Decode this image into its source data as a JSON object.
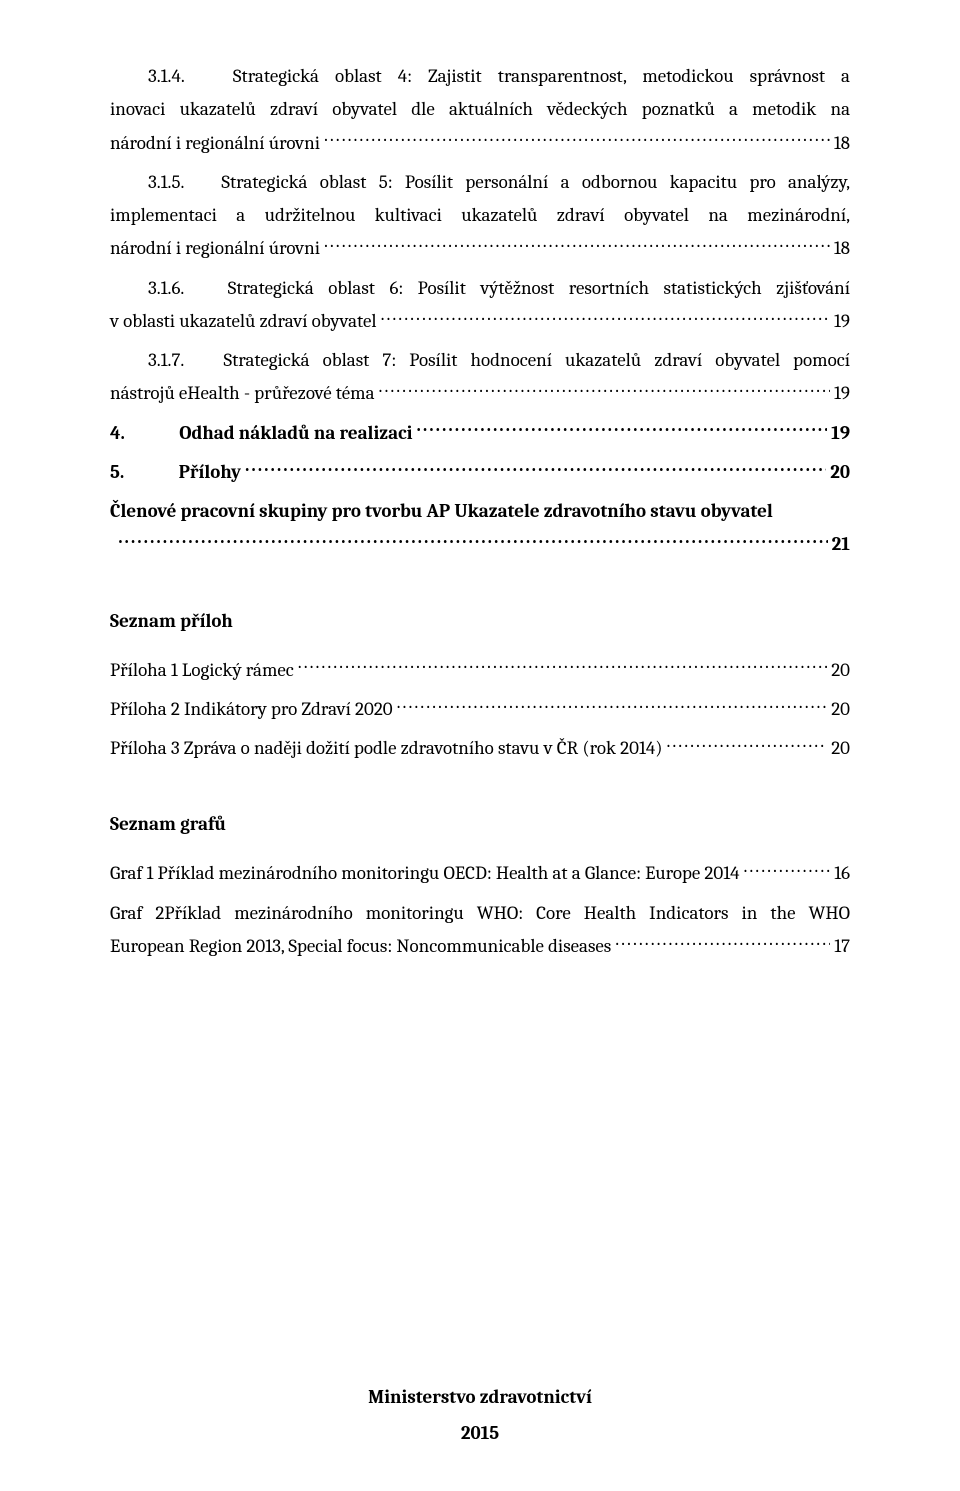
{
  "entries": {
    "e1": {
      "num": "3.1.4.",
      "title_l1": "Strategická oblast 4:   Zajistit transparentnost, metodickou správnost a",
      "title_l2": "inovaci ukazatelů zdraví obyvatel dle aktuálních vědeckých poznatků a metodik na",
      "last": "národní i regionální úrovni",
      "page": "18"
    },
    "e2": {
      "num": "3.1.5.",
      "title_l1": "Strategická oblast 5:   Posílit personální a odbornou kapacitu pro analýzy,",
      "title_l2": "implementaci a udržitelnou kultivaci ukazatelů zdraví obyvatel na mezinárodní,",
      "last": "národní i regionální úrovni",
      "page": "18"
    },
    "e3": {
      "num": "3.1.6.",
      "title_l1": "Strategická oblast 6:   Posílit výtěžnost resortních statistických zjišťování",
      "last": "v oblasti ukazatelů zdraví obyvatel",
      "page": "19"
    },
    "e4": {
      "num": "3.1.7.",
      "title_l1": "Strategická oblast 7:   Posílit hodnocení ukazatelů zdraví obyvatel pomocí",
      "last": "nástrojů eHealth - průřezové téma",
      "page": "19"
    },
    "e5": {
      "num": "4.",
      "label": "Odhad nákladů na realizaci",
      "page": "19"
    },
    "e6": {
      "num": "5.",
      "label": "Přílohy",
      "page": "20"
    },
    "e7": {
      "title": "Členové pracovní skupiny pro tvorbu AP Ukazatele zdravotního stavu obyvatel",
      "page": "21"
    }
  },
  "seznam_priloh_heading": "Seznam příloh",
  "prilohy": {
    "p1": {
      "label": "Příloha 1 Logický rámec",
      "page": "20"
    },
    "p2": {
      "label": "Příloha 2 Indikátory pro Zdraví 2020",
      "page": "20"
    },
    "p3": {
      "label": "Příloha 3 Zpráva o naději dožití podle zdravotního stavu v ČR (rok 2014)",
      "page": "20"
    }
  },
  "seznam_grafu_heading": "Seznam grafů",
  "grafy": {
    "g1": {
      "label": "Graf 1 Příklad mezinárodního monitoringu OECD: Health at a Glance: Europe 2014",
      "page": "16"
    },
    "g2": {
      "l1": "Graf 2Příklad mezinárodního monitoringu WHO: Core Health Indicators in the WHO",
      "last": "European Region 2013, Special focus: Noncommunicable diseases",
      "page": "17"
    }
  },
  "footer": {
    "org": "Ministerstvo zdravotnictví",
    "year": "2015"
  }
}
